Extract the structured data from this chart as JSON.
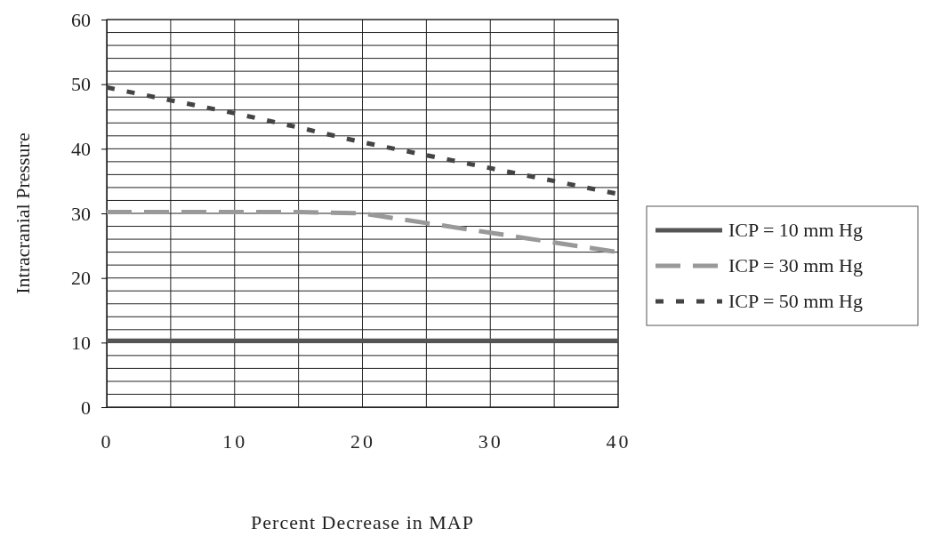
{
  "chart_data": {
    "type": "line",
    "xlabel": "Percent Decrease in MAP",
    "ylabel": "Intracranial Pressure",
    "x": [
      0,
      5,
      10,
      15,
      20,
      25,
      30,
      35,
      40
    ],
    "series": [
      {
        "name": "ICP = 10 mm Hg",
        "color": "#555555",
        "line_style": "solid",
        "values": [
          10.3,
          10.3,
          10.3,
          10.3,
          10.3,
          10.3,
          10.3,
          10.3,
          10.3
        ]
      },
      {
        "name": "ICP = 30 mm Hg",
        "color": "#999999",
        "line_style": "dashed",
        "values": [
          30.2,
          30.2,
          30.2,
          30.2,
          30,
          28.5,
          27,
          25.5,
          24
        ]
      },
      {
        "name": "ICP = 50 mm Hg",
        "color": "#444444",
        "line_style": "dotted",
        "values": [
          49.5,
          47.5,
          45.5,
          43.3,
          41,
          39,
          37,
          35,
          33
        ]
      }
    ],
    "xlim": [
      0,
      40
    ],
    "xticks": [
      0,
      {
        "value": 5,
        "label": null
      },
      10,
      {
        "value": 15,
        "label": null
      },
      20,
      {
        "value": 25,
        "label": null
      },
      30,
      {
        "value": 35,
        "label": null
      },
      40
    ],
    "ylim": [
      0,
      60
    ],
    "yticks": [
      0,
      {
        "value": 2,
        "label": null
      },
      {
        "value": 4,
        "label": null
      },
      {
        "value": 6,
        "label": null
      },
      {
        "value": 8,
        "label": null
      },
      10,
      {
        "value": 12,
        "label": null
      },
      {
        "value": 14,
        "label": null
      },
      {
        "value": 16,
        "label": null
      },
      {
        "value": 18,
        "label": null
      },
      20,
      {
        "value": 22,
        "label": null
      },
      {
        "value": 24,
        "label": null
      },
      {
        "value": 26,
        "label": null
      },
      {
        "value": 28,
        "label": null
      },
      30,
      {
        "value": 32,
        "label": null
      },
      {
        "value": 34,
        "label": null
      },
      {
        "value": 36,
        "label": null
      },
      {
        "value": 38,
        "label": null
      },
      40,
      {
        "value": 42,
        "label": null
      },
      {
        "value": 44,
        "label": null
      },
      {
        "value": 46,
        "label": null
      },
      {
        "value": 48,
        "label": null
      },
      50,
      {
        "value": 52,
        "label": null
      },
      {
        "value": 54,
        "label": null
      },
      {
        "value": 56,
        "label": null
      },
      {
        "value": 58,
        "label": null
      },
      60
    ],
    "grid": true,
    "legend": "right",
    "marker": "none"
  }
}
